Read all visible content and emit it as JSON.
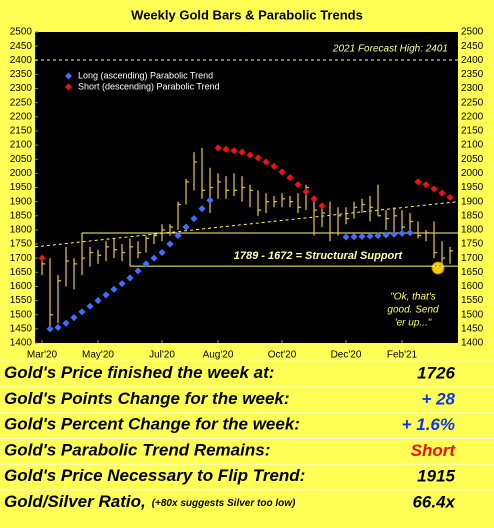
{
  "chart_data": {
    "type": "hlc",
    "title": "Weekly Gold Bars & Parabolic Trends",
    "categories": [
      "Mar'20",
      null,
      null,
      null,
      null,
      null,
      null,
      "May'20",
      null,
      null,
      null,
      null,
      null,
      null,
      null,
      "Jul'20",
      null,
      null,
      null,
      null,
      null,
      null,
      "Aug'20",
      null,
      null,
      null,
      null,
      null,
      null,
      null,
      "Oct'20",
      null,
      null,
      null,
      null,
      null,
      null,
      null,
      "Dec'20",
      null,
      null,
      null,
      null,
      null,
      null,
      "Feb'21",
      null,
      null,
      null,
      null,
      null,
      null
    ],
    "bars": {
      "color": "#d8b848",
      "high": [
        1705,
        1700,
        1640,
        1740,
        1700,
        1750,
        1740,
        1730,
        1760,
        1770,
        1750,
        1770,
        1760,
        1780,
        1790,
        1820,
        1820,
        1900,
        1980,
        2075,
        2090,
        2020,
        2000,
        1990,
        2000,
        1990,
        1960,
        1940,
        1930,
        1920,
        1930,
        1920,
        1930,
        1960,
        1910,
        1890,
        1900,
        1880,
        1880,
        1900,
        1910,
        1920,
        1960,
        1870,
        1880,
        1870,
        1860,
        1830,
        1800,
        1830,
        1760,
        1740
      ],
      "low": [
        1640,
        1450,
        1470,
        1600,
        1590,
        1640,
        1670,
        1680,
        1690,
        1700,
        1690,
        1700,
        1700,
        1720,
        1750,
        1760,
        1780,
        1800,
        1890,
        1940,
        1910,
        1860,
        1910,
        1910,
        1920,
        1900,
        1880,
        1850,
        1860,
        1880,
        1880,
        1880,
        1860,
        1870,
        1780,
        1810,
        1760,
        1780,
        1820,
        1840,
        1860,
        1830,
        1850,
        1800,
        1780,
        1800,
        1780,
        1770,
        1760,
        1700,
        1680,
        1680
      ],
      "close": [
        1680,
        1500,
        1620,
        1690,
        1680,
        1700,
        1720,
        1710,
        1740,
        1730,
        1720,
        1740,
        1720,
        1770,
        1780,
        1800,
        1810,
        1890,
        1970,
        2040,
        1940,
        1950,
        1970,
        1940,
        1940,
        1950,
        1940,
        1870,
        1900,
        1900,
        1910,
        1900,
        1880,
        1950,
        1870,
        1860,
        1790,
        1850,
        1840,
        1880,
        1890,
        1880,
        1850,
        1840,
        1850,
        1810,
        1830,
        1780,
        1790,
        1720,
        1700,
        1726
      ]
    },
    "series": [
      {
        "name": "Long (ascending) Parabolic Trend",
        "color": "#3f6fff",
        "values": [
          null,
          1450,
          1455,
          1470,
          1490,
          1510,
          1530,
          1550,
          1570,
          1590,
          1610,
          1630,
          1655,
          1680,
          1700,
          1720,
          1750,
          1780,
          1810,
          1840,
          1875,
          1905,
          null,
          null,
          null,
          null,
          null,
          null,
          null,
          null,
          null,
          null,
          null,
          null,
          null,
          null,
          null,
          null,
          1775,
          1776,
          1777,
          1778,
          1780,
          1782,
          1785,
          1788,
          1790,
          null,
          null,
          null,
          null,
          null
        ]
      },
      {
        "name": "Short (descending) Parabolic Trend",
        "color": "#ee1111",
        "values": [
          1700,
          null,
          null,
          null,
          null,
          null,
          null,
          null,
          null,
          null,
          null,
          null,
          null,
          null,
          null,
          null,
          null,
          null,
          null,
          null,
          null,
          null,
          2090,
          2085,
          2080,
          2075,
          2065,
          2055,
          2040,
          2025,
          2005,
          1985,
          1960,
          1935,
          1910,
          1885,
          null,
          null,
          null,
          null,
          null,
          null,
          null,
          null,
          null,
          null,
          null,
          1970,
          1960,
          1945,
          1930,
          1915
        ]
      }
    ],
    "forecast": {
      "value": 2401,
      "label": "2021 Forecast High: 2401"
    },
    "support": {
      "high": 1789,
      "low": 1672,
      "label": "1789 - 1672 = Structural Support"
    },
    "trendline": {
      "values": [
        1740,
        1900
      ]
    },
    "annotation": [
      "\"Ok, that's",
      "good.  Send",
      "'er up...\""
    ],
    "ylim": [
      1400,
      2500
    ],
    "yticks": [
      1400,
      1450,
      1500,
      1550,
      1600,
      1650,
      1700,
      1750,
      1800,
      1850,
      1900,
      1950,
      2000,
      2050,
      2100,
      2150,
      2200,
      2250,
      2300,
      2350,
      2400,
      2450,
      2500
    ],
    "legend": "upper left"
  },
  "table": {
    "rows": [
      {
        "label": "Gold's Price finished the week at:",
        "value": "1726",
        "color": "#000000"
      },
      {
        "label": "Gold's Points Change for the week:",
        "value": "+ 28",
        "color": "#1133ee"
      },
      {
        "label": "Gold's Percent Change for the week:",
        "value": "+ 1.6%",
        "color": "#1133ee"
      },
      {
        "label": "Gold's Parabolic Trend Remains:",
        "value": "Short",
        "color": "#ee1111"
      },
      {
        "label": "Gold's Price Necessary to Flip Trend:",
        "value": "1915",
        "color": "#000000"
      },
      {
        "label": "Gold/Silver Ratio,",
        "note": "(+80x suggests Silver too low)",
        "value": "66.4x",
        "color": "#000000"
      }
    ]
  }
}
